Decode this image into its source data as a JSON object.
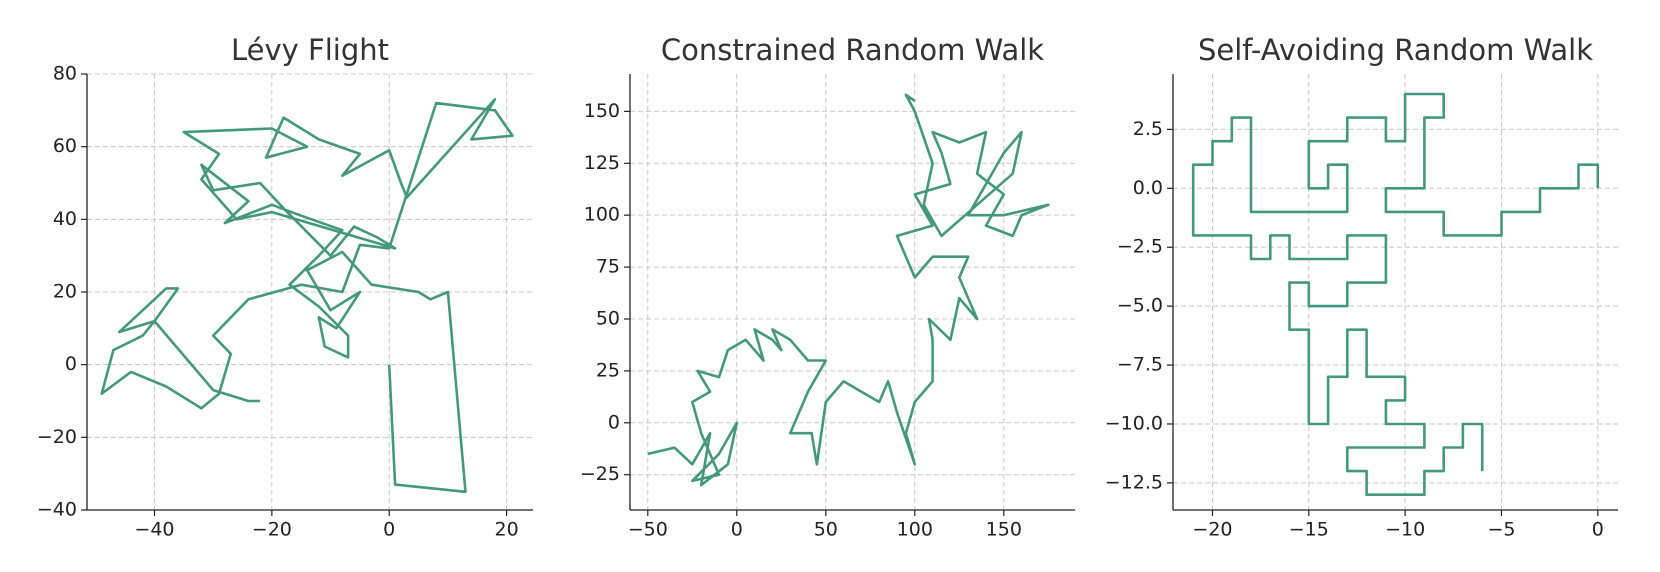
{
  "chart_data": [
    {
      "type": "line",
      "title": "Lévy Flight",
      "color": "#45997a",
      "grid": true,
      "xlim": [
        -51.5,
        24.5
      ],
      "ylim": [
        -40,
        80
      ],
      "xticks": [
        {
          "value": -40,
          "label": "−40"
        },
        {
          "value": -20,
          "label": "−20"
        },
        0,
        20
      ],
      "yticks": [
        {
          "value": -40,
          "label": "−40"
        },
        {
          "value": -20,
          "label": "−20"
        },
        0,
        20,
        40,
        60,
        80
      ],
      "x": [
        0,
        1,
        13,
        10,
        7,
        5,
        -3,
        -8,
        -14,
        -10,
        -5,
        -9,
        -12,
        -11,
        -7,
        -7,
        -12,
        -17,
        -12,
        -8,
        -15,
        -20,
        -28,
        -24,
        -32,
        -30,
        -22,
        -18,
        -10,
        -6,
        -2,
        1,
        -20,
        -26,
        -32,
        -29,
        -35,
        -20,
        -14,
        -21,
        -18,
        -12,
        -5,
        -8,
        0,
        2,
        3,
        18,
        14,
        21,
        18,
        8,
        0,
        -5,
        -8,
        -15,
        -24,
        -30,
        -27,
        -29,
        -32,
        -38,
        -44,
        -49,
        -47,
        -42,
        -40,
        -46,
        -38,
        -36,
        -40,
        -30,
        -24,
        -22
      ],
      "values": [
        0,
        -33,
        -35,
        20,
        18,
        20,
        22,
        31,
        26,
        15,
        20,
        10,
        13,
        5,
        2,
        8,
        16,
        22,
        30,
        37,
        41,
        44,
        39,
        45,
        55,
        48,
        50,
        43,
        30,
        38,
        35,
        32,
        42,
        40,
        51,
        58,
        64,
        65,
        60,
        57,
        68,
        62,
        58,
        52,
        59,
        50,
        46,
        73,
        62,
        63,
        70,
        72,
        32,
        33,
        20,
        22,
        18,
        8,
        3,
        -8,
        -12,
        -6,
        -2,
        -8,
        4,
        8,
        12,
        9,
        21,
        21,
        12,
        -7,
        -10,
        -10
      ]
    },
    {
      "type": "line",
      "title": "Constrained Random Walk",
      "color": "#45997a",
      "grid": true,
      "xlim": [
        -60,
        190
      ],
      "ylim": [
        -42,
        168
      ],
      "xticks": [
        {
          "value": -50,
          "label": "−50"
        },
        0,
        50,
        100,
        150
      ],
      "yticks": [
        {
          "value": -25,
          "label": "−25"
        },
        0,
        25,
        50,
        75,
        100,
        125,
        150
      ],
      "x": [
        -50,
        -35,
        -25,
        -15,
        -20,
        -5,
        0,
        -10,
        -25,
        -10,
        -20,
        -25,
        -15,
        -22,
        -10,
        -5,
        5,
        15,
        10,
        20,
        25,
        20,
        30,
        40,
        50,
        40,
        35,
        30,
        42,
        45,
        50,
        60,
        70,
        80,
        85,
        90,
        100,
        95,
        100,
        110,
        110,
        108,
        120,
        125,
        135,
        125,
        130,
        110,
        100,
        90,
        110,
        100,
        120,
        115,
        110,
        125,
        140,
        135,
        150,
        140,
        155,
        160,
        175,
        150,
        130,
        150,
        160,
        155,
        135,
        115,
        105,
        110,
        100,
        95,
        100
      ],
      "values": [
        -15,
        -12,
        -20,
        -5,
        -30,
        -20,
        0,
        -15,
        -28,
        -25,
        -5,
        10,
        15,
        25,
        22,
        35,
        40,
        30,
        45,
        40,
        35,
        45,
        40,
        30,
        30,
        15,
        5,
        -5,
        -5,
        -20,
        10,
        20,
        15,
        10,
        20,
        5,
        -20,
        -5,
        10,
        20,
        40,
        50,
        40,
        60,
        50,
        70,
        80,
        80,
        70,
        90,
        95,
        110,
        115,
        130,
        140,
        135,
        140,
        120,
        110,
        95,
        90,
        100,
        105,
        100,
        100,
        130,
        140,
        120,
        105,
        90,
        105,
        125,
        150,
        158,
        155
      ]
    },
    {
      "type": "line",
      "title": "Self-Avoiding Random Walk",
      "color": "#45997a",
      "grid": true,
      "xlim": [
        -22.05,
        1.05
      ],
      "ylim": [
        -13.65,
        4.85
      ],
      "xticks": [
        {
          "value": -20,
          "label": "−20"
        },
        {
          "value": -15,
          "label": "−15"
        },
        {
          "value": -10,
          "label": "−10"
        },
        {
          "value": -5,
          "label": "−5"
        },
        0
      ],
      "yticks": [
        {
          "value": -12.5,
          "label": "−12.5"
        },
        {
          "value": -10,
          "label": "−10.0"
        },
        {
          "value": -7.5,
          "label": "−7.5"
        },
        {
          "value": -5,
          "label": "−5.0"
        },
        {
          "value": -2.5,
          "label": "−2.5"
        },
        {
          "value": 0,
          "label": "0.0"
        },
        2.5
      ],
      "x": [
        0,
        0,
        -1,
        -1,
        -3,
        -3,
        -5,
        -5,
        -8,
        -8,
        -11,
        -11,
        -9,
        -9,
        -8,
        -8,
        -10,
        -10,
        -11,
        -11,
        -13,
        -13,
        -15,
        -15,
        -14,
        -14,
        -13,
        -13,
        -18,
        -18,
        -19,
        -19,
        -20,
        -20,
        -21,
        -21,
        -18,
        -18,
        -17,
        -17,
        -16,
        -16,
        -13,
        -13,
        -11,
        -11,
        -13,
        -13,
        -15,
        -15,
        -16,
        -16,
        -15,
        -15,
        -14,
        -14,
        -13,
        -13,
        -12,
        -12,
        -10,
        -10,
        -11,
        -11,
        -9,
        -9,
        -13,
        -13,
        -12,
        -12,
        -9,
        -9,
        -8,
        -8,
        -7,
        -7,
        -6,
        -6
      ],
      "values": [
        0,
        1,
        1,
        0,
        0,
        -1,
        -1,
        -2,
        -2,
        -1,
        -1,
        0,
        0,
        3,
        3,
        4,
        4,
        2,
        2,
        3,
        3,
        2,
        2,
        0,
        0,
        1,
        1,
        -1,
        -1,
        3,
        3,
        2,
        2,
        1,
        1,
        -2,
        -2,
        -3,
        -3,
        -2,
        -2,
        -3,
        -3,
        -2,
        -2,
        -4,
        -4,
        -5,
        -5,
        -4,
        -4,
        -6,
        -6,
        -10,
        -10,
        -8,
        -8,
        -6,
        -6,
        -8,
        -8,
        -9,
        -9,
        -10,
        -10,
        -11,
        -11,
        -12,
        -12,
        -13,
        -13,
        -12,
        -12,
        -11,
        -11,
        -10,
        -10,
        -12
      ]
    }
  ]
}
